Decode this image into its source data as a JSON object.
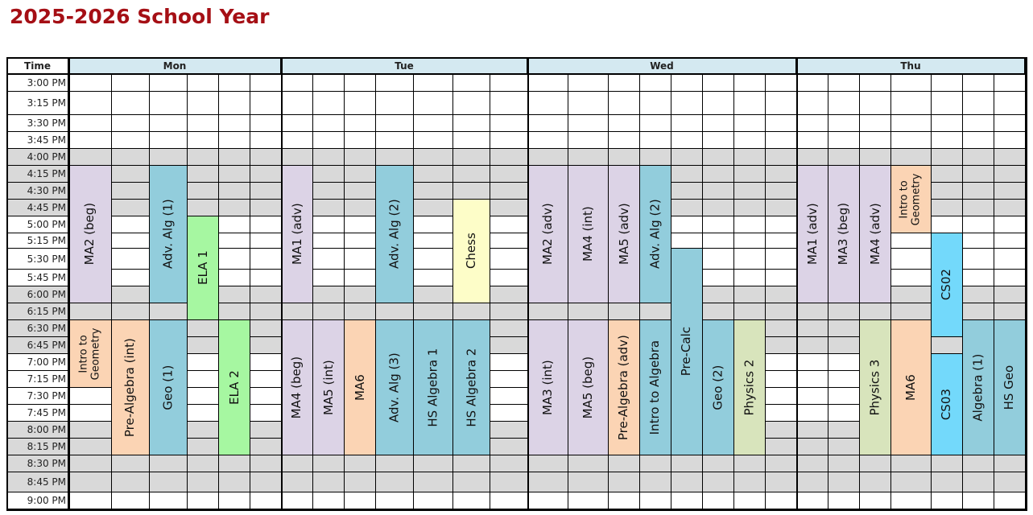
{
  "title": "2025-2026 School Year",
  "colors": {
    "title": "#a50f15",
    "header_bg": "#d4e9f1",
    "gray_row": "#d9d9d9",
    "lavender": "#dcd3e6",
    "peach": "#fbd4b4",
    "blue": "#92cddc",
    "green": "#a6f7a1",
    "yellow": "#fdfdc8",
    "olive": "#d8e4bc",
    "cyan": "#73d9fb"
  },
  "header": {
    "time_label": "Time",
    "days": [
      {
        "label": "Mon"
      },
      {
        "label": "Tue"
      },
      {
        "label": "Wed"
      },
      {
        "label": "Thu"
      }
    ]
  },
  "times": [
    "3:00 PM",
    "3:15 PM",
    "3:30 PM",
    "3:45 PM",
    "4:00 PM",
    "4:15 PM",
    "4:30 PM",
    "4:45 PM",
    "5:00 PM",
    "5:15 PM",
    "5:30 PM",
    "5:45 PM",
    "6:00 PM",
    "6:15 PM",
    "6:30 PM",
    "6:45 PM",
    "7:00 PM",
    "7:15 PM",
    "7:30 PM",
    "7:45 PM",
    "8:00 PM",
    "8:15 PM",
    "8:30 PM",
    "8:45 PM",
    "9:00 PM"
  ],
  "gray_rows": [
    4,
    5,
    6,
    7,
    12,
    13,
    14,
    15,
    20,
    21,
    22,
    23
  ],
  "classes": [
    {
      "day": "Mon",
      "col": 0,
      "start": "4:15 PM",
      "end": "6:15 PM",
      "label": "MA2 (beg)",
      "color": "lavender"
    },
    {
      "day": "Mon",
      "col": 2,
      "start": "4:15 PM",
      "end": "6:15 PM",
      "label": "Adv. Alg (1)",
      "color": "blue"
    },
    {
      "day": "Mon",
      "col": 3,
      "start": "5:00 PM",
      "end": "6:30 PM",
      "label": "ELA 1",
      "color": "green"
    },
    {
      "day": "Mon",
      "col": 0,
      "start": "6:30 PM",
      "end": "7:30 PM",
      "label": "Intro to\nGeometry",
      "color": "peach"
    },
    {
      "day": "Mon",
      "col": 1,
      "start": "6:30 PM",
      "end": "8:30 PM",
      "label": "Pre-Algebra (int)",
      "color": "peach"
    },
    {
      "day": "Mon",
      "col": 2,
      "start": "6:30 PM",
      "end": "8:30 PM",
      "label": "Geo (1)",
      "color": "blue"
    },
    {
      "day": "Mon",
      "col": 4,
      "start": "6:30 PM",
      "end": "8:30 PM",
      "label": "ELA 2",
      "color": "green"
    },
    {
      "day": "Tue",
      "col": 0,
      "start": "4:15 PM",
      "end": "6:15 PM",
      "label": "MA1 (adv)",
      "color": "lavender"
    },
    {
      "day": "Tue",
      "col": 3,
      "start": "4:15 PM",
      "end": "6:15 PM",
      "label": "Adv. Alg (2)",
      "color": "blue"
    },
    {
      "day": "Tue",
      "col": 5,
      "start": "4:45 PM",
      "end": "6:15 PM",
      "label": "Chess",
      "color": "yellow"
    },
    {
      "day": "Tue",
      "col": 0,
      "start": "6:30 PM",
      "end": "8:30 PM",
      "label": "MA4 (beg)",
      "color": "lavender"
    },
    {
      "day": "Tue",
      "col": 1,
      "start": "6:30 PM",
      "end": "8:30 PM",
      "label": "MA5 (int)",
      "color": "lavender"
    },
    {
      "day": "Tue",
      "col": 2,
      "start": "6:30 PM",
      "end": "8:30 PM",
      "label": "MA6",
      "color": "peach"
    },
    {
      "day": "Tue",
      "col": 3,
      "start": "6:30 PM",
      "end": "8:30 PM",
      "label": "Adv. Alg (3)",
      "color": "blue"
    },
    {
      "day": "Tue",
      "col": 4,
      "start": "6:30 PM",
      "end": "8:30 PM",
      "label": "HS Algebra 1",
      "color": "blue"
    },
    {
      "day": "Tue",
      "col": 5,
      "start": "6:30 PM",
      "end": "8:30 PM",
      "label": "HS Algebra 2",
      "color": "blue"
    },
    {
      "day": "Wed",
      "col": 0,
      "start": "4:15 PM",
      "end": "6:15 PM",
      "label": "MA2 (adv)",
      "color": "lavender"
    },
    {
      "day": "Wed",
      "col": 1,
      "start": "4:15 PM",
      "end": "6:15 PM",
      "label": "MA4 (int)",
      "color": "lavender"
    },
    {
      "day": "Wed",
      "col": 2,
      "start": "4:15 PM",
      "end": "6:15 PM",
      "label": "MA5 (adv)",
      "color": "lavender"
    },
    {
      "day": "Wed",
      "col": 3,
      "start": "4:15 PM",
      "end": "6:15 PM",
      "label": "Adv. Alg (2)",
      "color": "blue"
    },
    {
      "day": "Wed",
      "col": 4,
      "start": "5:30 PM",
      "end": "8:30 PM",
      "label": "Pre-Calc",
      "color": "blue"
    },
    {
      "day": "Wed",
      "col": 0,
      "start": "6:30 PM",
      "end": "8:30 PM",
      "label": "MA3 (int)",
      "color": "lavender"
    },
    {
      "day": "Wed",
      "col": 1,
      "start": "6:30 PM",
      "end": "8:30 PM",
      "label": "MA5 (beg)",
      "color": "lavender"
    },
    {
      "day": "Wed",
      "col": 2,
      "start": "6:30 PM",
      "end": "8:30 PM",
      "label": "Pre-Algebra (adv)",
      "color": "peach"
    },
    {
      "day": "Wed",
      "col": 3,
      "start": "6:30 PM",
      "end": "8:30 PM",
      "label": "Intro to Algebra",
      "color": "blue"
    },
    {
      "day": "Wed",
      "col": 5,
      "start": "6:30 PM",
      "end": "8:30 PM",
      "label": "Geo (2)",
      "color": "blue"
    },
    {
      "day": "Wed",
      "col": 6,
      "start": "6:30 PM",
      "end": "8:30 PM",
      "label": "Physics 2",
      "color": "olive"
    },
    {
      "day": "Thu",
      "col": 0,
      "start": "4:15 PM",
      "end": "6:15 PM",
      "label": "MA1 (adv)",
      "color": "lavender"
    },
    {
      "day": "Thu",
      "col": 1,
      "start": "4:15 PM",
      "end": "6:15 PM",
      "label": "MA3 (beg)",
      "color": "lavender"
    },
    {
      "day": "Thu",
      "col": 2,
      "start": "4:15 PM",
      "end": "6:15 PM",
      "label": "MA4 (adv)",
      "color": "lavender"
    },
    {
      "day": "Thu",
      "col": 3,
      "start": "4:15 PM",
      "end": "5:15 PM",
      "label": "Intro to\nGeometry",
      "color": "peach"
    },
    {
      "day": "Thu",
      "col": 4,
      "start": "5:15 PM",
      "end": "6:45 PM",
      "label": "CS02",
      "color": "cyan"
    },
    {
      "day": "Thu",
      "col": 2,
      "start": "6:30 PM",
      "end": "8:30 PM",
      "label": "Physics 3",
      "color": "olive"
    },
    {
      "day": "Thu",
      "col": 3,
      "start": "6:30 PM",
      "end": "8:30 PM",
      "label": "MA6",
      "color": "peach"
    },
    {
      "day": "Thu",
      "col": 4,
      "start": "7:00 PM",
      "end": "8:30 PM",
      "label": "CS03",
      "color": "cyan"
    },
    {
      "day": "Thu",
      "col": 5,
      "start": "6:30 PM",
      "end": "8:30 PM",
      "label": "Algebra (1)",
      "color": "blue"
    },
    {
      "day": "Thu",
      "col": 6,
      "start": "6:30 PM",
      "end": "8:30 PM",
      "label": "HS Geo",
      "color": "blue"
    }
  ]
}
